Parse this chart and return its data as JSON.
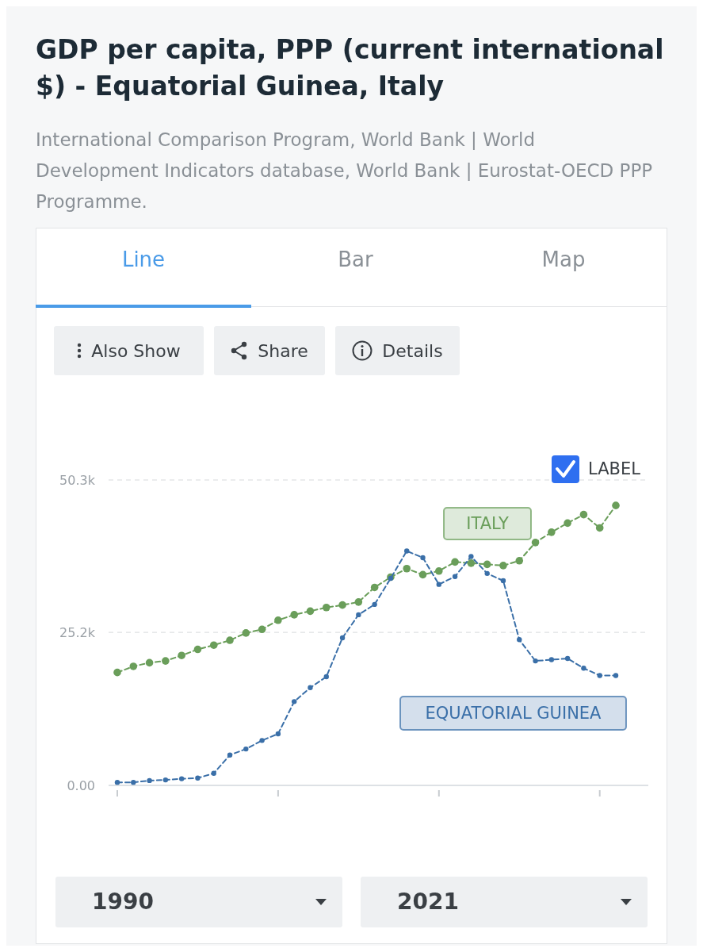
{
  "chart_data": {
    "type": "line",
    "title": "GDP per capita, PPP (current international $) - Equatorial Guinea, Italy",
    "subtitle": "International Comparison Program, World Bank | World Development Indicators database, World Bank | Eurostat-OECD PPP Programme.",
    "annotations": [
      "Line",
      "Bar",
      "Map",
      "Also Show",
      "Share",
      "Details",
      "LABEL",
      "1990",
      "2021"
    ],
    "categories": [
      null,
      null,
      null,
      null,
      null,
      null,
      null,
      null,
      null,
      null,
      null,
      null,
      null,
      null,
      null,
      null,
      null,
      null,
      null,
      null,
      null,
      null,
      null,
      null,
      null,
      null,
      null,
      null,
      null,
      null,
      null,
      null
    ],
    "series": [
      {
        "name": "ITALY",
        "color": "#6a9e5a",
        "values": [
          18600,
          19600,
          20200,
          20500,
          21400,
          22400,
          23100,
          23900,
          25100,
          25700,
          27200,
          28100,
          28700,
          29300,
          29700,
          30200,
          32600,
          34300,
          35700,
          34700,
          35300,
          36800,
          36600,
          36400,
          36200,
          37000,
          40000,
          41700,
          43200,
          44600,
          42400,
          46100
        ]
      },
      {
        "name": "EQUATORIAL GUINEA",
        "color": "#3a6fa8",
        "values": [
          500,
          500,
          800,
          900,
          1100,
          1200,
          2000,
          5000,
          6000,
          7400,
          8500,
          13800,
          16100,
          17900,
          24300,
          28100,
          29800,
          34100,
          38600,
          37500,
          33100,
          34400,
          37700,
          34900,
          33700,
          24000,
          20500,
          20700,
          20900,
          19300,
          18100,
          18100
        ]
      }
    ],
    "ylim": [
      0,
      50300
    ],
    "yticks": [
      {
        "value": 0,
        "label": "0.00"
      },
      {
        "value": 25200,
        "label": "25.2k"
      },
      {
        "value": 50300,
        "label": "50.3k"
      }
    ],
    "grid": "y",
    "legend": false,
    "marker": "circle",
    "line_style": "dashed"
  }
}
